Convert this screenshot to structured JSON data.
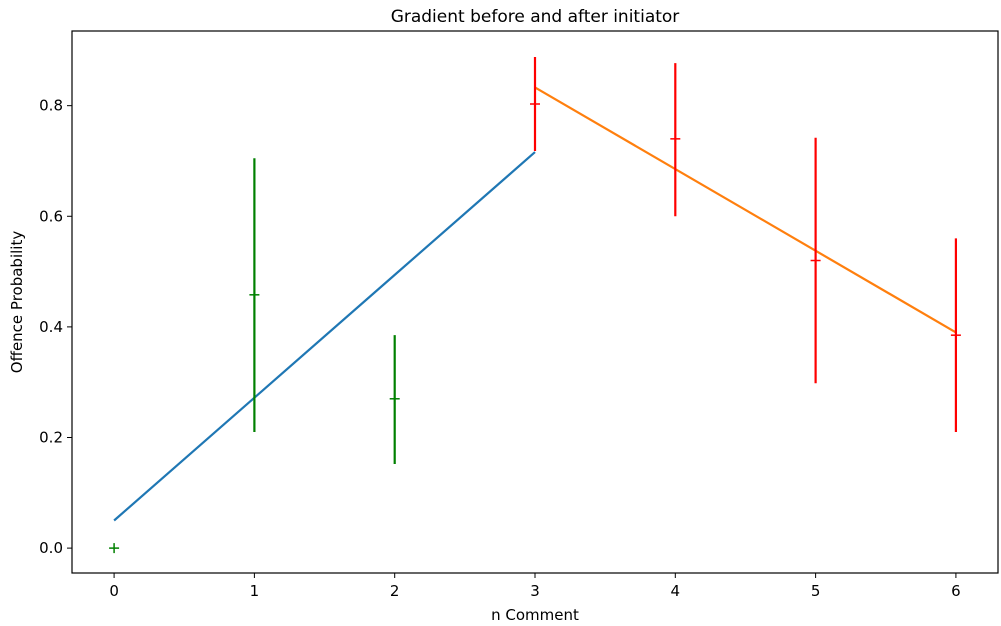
{
  "chart_data": {
    "type": "scatter",
    "title": "Gradient before and after initiator",
    "xlabel": "n Comment",
    "ylabel": "Offence Probability",
    "xlim": [
      -0.3,
      6.3
    ],
    "ylim": [
      -0.045,
      0.935
    ],
    "xticks": [
      0,
      1,
      2,
      3,
      4,
      5,
      6
    ],
    "yticks": [
      0.0,
      0.2,
      0.4,
      0.6,
      0.8
    ],
    "xtick_labels": [
      "0",
      "1",
      "2",
      "3",
      "4",
      "5",
      "6"
    ],
    "ytick_labels": [
      "0.0",
      "0.2",
      "0.4",
      "0.6",
      "0.8"
    ],
    "grid": false,
    "series": [
      {
        "color": "#008000",
        "points": [
          {
            "x": 0,
            "y": 0.0,
            "low": 0.0,
            "high": 0.0
          },
          {
            "x": 1,
            "y": 0.458,
            "low": 0.21,
            "high": 0.705
          },
          {
            "x": 2,
            "y": 0.27,
            "low": 0.152,
            "high": 0.385
          }
        ]
      },
      {
        "color": "#ff0000",
        "points": [
          {
            "x": 3,
            "y": 0.803,
            "low": 0.718,
            "high": 0.888
          },
          {
            "x": 4,
            "y": 0.74,
            "low": 0.6,
            "high": 0.877
          },
          {
            "x": 5,
            "y": 0.52,
            "low": 0.298,
            "high": 0.742
          },
          {
            "x": 6,
            "y": 0.385,
            "low": 0.21,
            "high": 0.56
          }
        ]
      }
    ],
    "fit_lines": [
      {
        "color": "#1f77b4",
        "x": [
          0,
          3
        ],
        "y": [
          0.05,
          0.716
        ]
      },
      {
        "color": "#ff7f0e",
        "x": [
          3,
          6
        ],
        "y": [
          0.833,
          0.39
        ]
      }
    ]
  }
}
